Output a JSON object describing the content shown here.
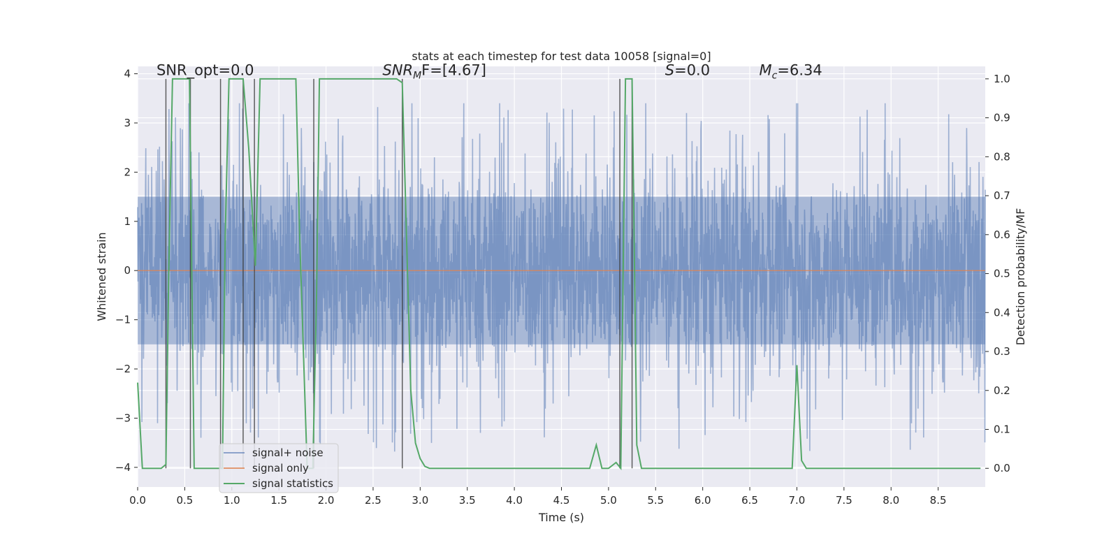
{
  "chart_data": {
    "type": "line",
    "title": "stats at each timestep for test data 10058 [signal=0]",
    "xlabel": "Time (s)",
    "ylabel_left": "Whitened strain",
    "ylabel_right": "Detection probability/MF",
    "xlim": [
      0,
      9.0
    ],
    "ylim_left": [
      -4.4,
      4.15
    ],
    "ylim_right": [
      -0.048,
      1.032
    ],
    "x_ticks": [
      "0.0",
      "0.5",
      "1.0",
      "1.5",
      "2.0",
      "2.5",
      "3.0",
      "3.5",
      "4.0",
      "4.5",
      "5.0",
      "5.5",
      "6.0",
      "6.5",
      "7.0",
      "7.5",
      "8.0",
      "8.5"
    ],
    "x_tick_values": [
      0,
      0.5,
      1,
      1.5,
      2,
      2.5,
      3,
      3.5,
      4,
      4.5,
      5,
      5.5,
      6,
      6.5,
      7,
      7.5,
      8,
      8.5
    ],
    "y_left_ticks": [
      "−4",
      "−3",
      "−2",
      "−1",
      "0",
      "1",
      "2",
      "3",
      "4"
    ],
    "y_left_tick_values": [
      -4,
      -3,
      -2,
      -1,
      0,
      1,
      2,
      3,
      4
    ],
    "y_right_ticks": [
      "0.0",
      "0.1",
      "0.2",
      "0.3",
      "0.4",
      "0.5",
      "0.6",
      "0.7",
      "0.8",
      "0.9",
      "1.0"
    ],
    "y_right_tick_values": [
      0,
      0.1,
      0.2,
      0.3,
      0.4,
      0.5,
      0.6,
      0.7,
      0.8,
      0.9,
      1.0
    ],
    "grid": true,
    "annotations": [
      {
        "id": "snr-opt",
        "text": "SNR_opt=0.0",
        "x": 0.2,
        "y_right": 1.01
      },
      {
        "id": "snr-mf",
        "text": "SNR_MF=[4.67]",
        "base": "SNR",
        "sub": "M",
        "rest": "F=[4.67]",
        "x": 2.6,
        "y_right": 1.01
      },
      {
        "id": "s-value",
        "text": "S=0.0",
        "base": "S",
        "rest": "=0.0",
        "x": 5.6,
        "y_right": 1.01
      },
      {
        "id": "mc-value",
        "text": "M_c=6.34",
        "base": "M",
        "sub": "c",
        "rest": "=6.34",
        "x": 6.6,
        "y_right": 1.01
      }
    ],
    "series": [
      {
        "name": "signal+ noise",
        "color": "#4c72b0",
        "kind": "noise",
        "amplitude_core": 1.5,
        "amplitude_spikes": 3.1
      },
      {
        "name": "signal only",
        "color": "#dd8452",
        "kind": "flat",
        "value": 0.0
      },
      {
        "name": "signal statistics",
        "color": "#55a868",
        "axis": "right",
        "x": [
          0.0,
          0.05,
          0.1,
          0.2,
          0.25,
          0.3,
          0.33,
          0.37,
          0.4,
          0.5,
          0.55,
          0.6,
          0.65,
          0.7,
          0.8,
          0.85,
          0.9,
          0.93,
          0.97,
          1.0,
          1.05,
          1.12,
          1.18,
          1.25,
          1.3,
          1.4,
          1.5,
          1.6,
          1.68,
          1.72,
          1.8,
          1.86,
          1.9,
          1.93,
          2.0,
          2.2,
          2.4,
          2.6,
          2.75,
          2.81,
          2.9,
          2.95,
          3.0,
          3.05,
          3.1,
          3.2,
          3.5,
          4.0,
          4.5,
          4.8,
          4.87,
          4.93,
          5.0,
          5.08,
          5.13,
          5.18,
          5.2,
          5.25,
          5.3,
          5.35,
          5.4,
          5.5,
          6.0,
          6.5,
          6.95,
          7.0,
          7.05,
          7.1,
          7.15,
          7.5,
          8.0,
          8.5,
          8.95
        ],
        "values": [
          0.22,
          0.0,
          0.0,
          0.0,
          0.0,
          0.01,
          0.5,
          1.0,
          1.0,
          1.0,
          1.0,
          0.0,
          0.0,
          0.0,
          0.0,
          0.0,
          0.0,
          0.6,
          1.0,
          1.0,
          1.0,
          1.0,
          0.82,
          0.52,
          1.0,
          1.0,
          1.0,
          1.0,
          1.0,
          0.6,
          0.0,
          0.0,
          0.45,
          1.0,
          1.0,
          1.0,
          1.0,
          1.0,
          1.0,
          0.99,
          0.2,
          0.065,
          0.025,
          0.005,
          0.0,
          0.0,
          0.0,
          0.0,
          0.0,
          0.0,
          0.06,
          0.0,
          0.0,
          0.015,
          0.0,
          1.0,
          1.0,
          1.0,
          0.06,
          0.0,
          0.0,
          0.0,
          0.0,
          0.0,
          0.0,
          0.265,
          0.02,
          0.0,
          0.0,
          0.0,
          0.0,
          0.0,
          0.0
        ]
      },
      {
        "name": "threshold markers",
        "color": "#3a3a3a",
        "kind": "vlines",
        "x": [
          0.3,
          0.56,
          0.88,
          1.12,
          1.24,
          1.87,
          2.81,
          5.12,
          5.25
        ]
      }
    ],
    "legend": {
      "position": "lower-left",
      "entries": [
        "signal+ noise",
        "signal only",
        "signal statistics"
      ]
    }
  }
}
